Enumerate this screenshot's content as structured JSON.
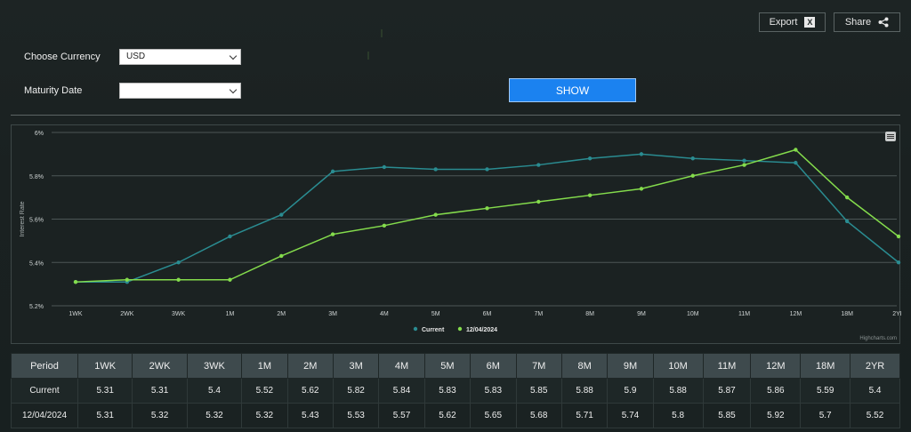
{
  "toolbar": {
    "export_label": "Export",
    "export_icon": "excel-icon",
    "share_label": "Share",
    "share_icon": "share-icon"
  },
  "form": {
    "currency_label": "Choose Currency",
    "currency_value": "USD",
    "maturity_label": "Maturity Date",
    "maturity_value": "",
    "show_label": "SHOW"
  },
  "chart": {
    "ylabel": "Interest Rate",
    "credits": "Highcharts.com",
    "colors": {
      "Current": "#2a8c91",
      "12/04/2024": "#84dc4c"
    }
  },
  "chart_data": {
    "type": "line",
    "categories": [
      "1WK",
      "2WK",
      "3WK",
      "1M",
      "2M",
      "3M",
      "4M",
      "5M",
      "6M",
      "7M",
      "8M",
      "9M",
      "10M",
      "11M",
      "12M",
      "18M",
      "2YR"
    ],
    "series": [
      {
        "name": "Current",
        "values": [
          5.31,
          5.31,
          5.4,
          5.52,
          5.62,
          5.82,
          5.84,
          5.83,
          5.83,
          5.85,
          5.88,
          5.9,
          5.88,
          5.87,
          5.86,
          5.59,
          5.4
        ]
      },
      {
        "name": "12/04/2024",
        "values": [
          5.31,
          5.32,
          5.32,
          5.32,
          5.43,
          5.53,
          5.57,
          5.62,
          5.65,
          5.68,
          5.71,
          5.74,
          5.8,
          5.85,
          5.92,
          5.7,
          5.52
        ]
      }
    ],
    "ylabel": "Interest Rate",
    "ylim": [
      5.2,
      6.0
    ],
    "yticks": [
      "5.2%",
      "5.4%",
      "5.6%",
      "5.8%",
      "6%"
    ],
    "grid": true,
    "legend": "bottom-center"
  },
  "table": {
    "header": [
      "Period",
      "1WK",
      "2WK",
      "3WK",
      "1M",
      "2M",
      "3M",
      "4M",
      "5M",
      "6M",
      "7M",
      "8M",
      "9M",
      "10M",
      "11M",
      "12M",
      "18M",
      "2YR"
    ],
    "rows": [
      [
        "Current",
        "5.31",
        "5.31",
        "5.4",
        "5.52",
        "5.62",
        "5.82",
        "5.84",
        "5.83",
        "5.83",
        "5.85",
        "5.88",
        "5.9",
        "5.88",
        "5.87",
        "5.86",
        "5.59",
        "5.4"
      ],
      [
        "12/04/2024",
        "5.31",
        "5.32",
        "5.32",
        "5.32",
        "5.43",
        "5.53",
        "5.57",
        "5.62",
        "5.65",
        "5.68",
        "5.71",
        "5.74",
        "5.8",
        "5.85",
        "5.92",
        "5.7",
        "5.52"
      ]
    ]
  }
}
